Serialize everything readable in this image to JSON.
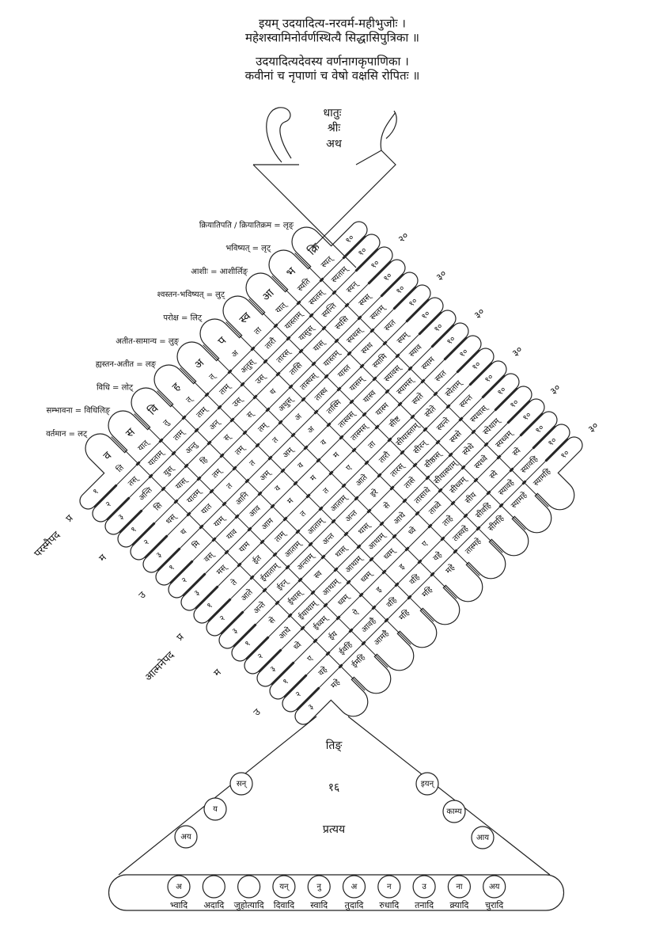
{
  "header": {
    "verse1": [
      "इयम् उदयादित्य-नरवर्म-महीभुजोः ।",
      "महेशस्वामिनोर्वर्णस्थित्यै सिद्धासिपुत्रिका ॥"
    ],
    "verse2": [
      "उदयादित्यदेवस्य वर्णनागकृपाणिका ।",
      "कवीनां च नृपाणां च वेषो वक्षसि रोपितः ॥"
    ]
  },
  "head": [
    "धातुः",
    "श्रीः",
    "अथ"
  ],
  "lakara_labels": [
    "वर्तमान = लट्",
    "सम्भावना = विधिलिङ्",
    "विधि = लोट्",
    "ह्यस्तन-अतीत = लङ्",
    "अतीत-सामान्य = लुङ्",
    "परोक्ष = लिट्",
    "श्वस्तन-भविष्यत् = लुट्",
    "आशीः = आशीर्लिङ्",
    "भविष्यत् = लृट्",
    "क्रियातिपति / क्रियातिक्रम = लृङ्"
  ],
  "lakara_letters": [
    "व",
    "स",
    "वि",
    "ह",
    "अ",
    "प",
    "स्व",
    "आ",
    "भ",
    "क्रि"
  ],
  "forms": [
    [
      "ति",
      "तस्",
      "अन्ति",
      "सि",
      "थस्",
      "थ",
      "मि",
      "वस्",
      "मस्",
      "ते",
      "आते",
      "अन्ते",
      "से",
      "आथे",
      "ध्वे",
      "ए",
      "वहे",
      "महे"
    ],
    [
      "यात्",
      "याताम्",
      "युस्",
      "यास्",
      "यातम्",
      "यात",
      "याम्",
      "याव",
      "याम",
      "ईत",
      "ईयाताम्",
      "ईरन्",
      "ईथास्",
      "ईयाथाम्",
      "ईध्वम्",
      "ईय",
      "ईवहि",
      "ईमहि"
    ],
    [
      "तु",
      "ताम्",
      "अन्तु",
      "हि",
      "तम्",
      "त",
      "आनि",
      "आव",
      "आम",
      "ताम्",
      "आताम्",
      "अन्ताम्",
      "स्व",
      "आथाम्",
      "ध्वम्",
      "ऐ",
      "आवहै",
      "आमहै"
    ],
    [
      "त्",
      "ताम्",
      "अन्",
      "स्",
      "तम्",
      "त",
      "अम्",
      "व",
      "म",
      "त",
      "आताम्",
      "अन्त",
      "थास्",
      "आथाम्",
      "ध्वम्",
      "इ",
      "वहि",
      "महि"
    ],
    [
      "त्",
      "ताम्",
      "उस्",
      "स्",
      "तम्",
      "त",
      "अम्",
      "व",
      "म",
      "त",
      "आताम्",
      "अन्त",
      "थास्",
      "आथाम्",
      "ध्वम्",
      "इ",
      "वहि",
      "महि"
    ],
    [
      "अ",
      "अतुस्",
      "उस्",
      "थ",
      "अथुस्",
      "अ",
      "अ",
      "व",
      "म",
      "ए",
      "आते",
      "इरे",
      "से",
      "आथे",
      "ध्वे",
      "ए",
      "वहे",
      "महे"
    ],
    [
      "ता",
      "तारौ",
      "तारस्",
      "तासि",
      "तास्थस्",
      "तास्थ",
      "तास्मि",
      "तास्वस्",
      "तास्मस्",
      "ता",
      "तारौ",
      "तारस्",
      "तासे",
      "तासाथे",
      "ताध्वे",
      "ताहे",
      "तास्वहे",
      "तास्महे"
    ],
    [
      "यात्",
      "यास्ताम्",
      "यासुस्",
      "यास्",
      "यास्तम्",
      "यास्त",
      "यासम्",
      "यास्व",
      "यास्म",
      "सीष्ट",
      "सीयास्ताम्",
      "सीरन्",
      "सीष्ठास्",
      "सीयास्थाम्",
      "सीध्वम्",
      "सीय",
      "सीवहि",
      "सीमहि"
    ],
    [
      "स्यति",
      "स्यतस्",
      "स्यन्ति",
      "स्यसि",
      "स्यथस्",
      "स्यथ",
      "स्यामि",
      "स्यावस्",
      "स्यामस्",
      "स्यते",
      "स्येते",
      "स्यन्ते",
      "स्यसे",
      "स्येथे",
      "स्यध्वे",
      "स्ये",
      "स्यावहे",
      "स्यामहे"
    ],
    [
      "स्यत्",
      "स्यताम्",
      "स्यन्",
      "स्यस्",
      "स्यतम्",
      "स्यत",
      "स्यम्",
      "स्याव",
      "स्याम",
      "स्यत",
      "स्येताम्",
      "स्यन्त",
      "स्यथास्",
      "स्येथाम्",
      "स्यध्वम्",
      "स्ये",
      "स्यावहि",
      "स्यामहि"
    ]
  ],
  "person_numbers": [
    "१",
    "२",
    "३"
  ],
  "row_end": "१०",
  "group_ends": [
    "२०",
    "३०",
    "३०",
    "३०",
    "३०",
    "३०"
  ],
  "pada": {
    "parasmaipada": "परस्मैपद",
    "atmanepada": "आत्मनेपद",
    "persons": [
      "प्र",
      "म",
      "उ"
    ]
  },
  "center": [
    "तिङ्",
    "१६",
    "प्रत्यय"
  ],
  "suffixes_left": [
    "सन्",
    "य",
    "अय"
  ],
  "suffixes_right": [
    "इयन्",
    "काम्य",
    "आय"
  ],
  "ganas": [
    {
      "name": "भ्वादि",
      "marker": "अ"
    },
    {
      "name": "अदादि"
    },
    {
      "name": "जुहोत्यादि"
    },
    {
      "name": "दिवादि",
      "marker": "यन्"
    },
    {
      "name": "स्वादि",
      "marker": "नु"
    },
    {
      "name": "तुदादि",
      "marker": "अ"
    },
    {
      "name": "रुधादि",
      "marker": "न"
    },
    {
      "name": "तनादि",
      "marker": "उ"
    },
    {
      "name": "क्र्यादि",
      "marker": "ना"
    },
    {
      "name": "चुरादि",
      "marker": "अय"
    }
  ]
}
